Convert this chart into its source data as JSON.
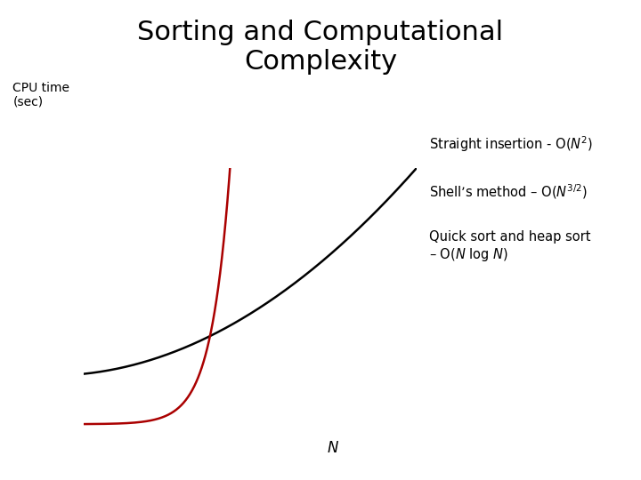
{
  "title_line1": "Sorting and Computational",
  "title_line2": "Complexity",
  "title_fontsize": 22,
  "ylabel": "CPU time\n(sec)",
  "xlabel_italic": "N",
  "background_color": "#ffffff",
  "curve_black_color": "#000000",
  "curve_red_color": "#aa0000",
  "annot_fontsize": 10.5,
  "ylabel_fontsize": 10,
  "xlabel_fontsize": 12
}
